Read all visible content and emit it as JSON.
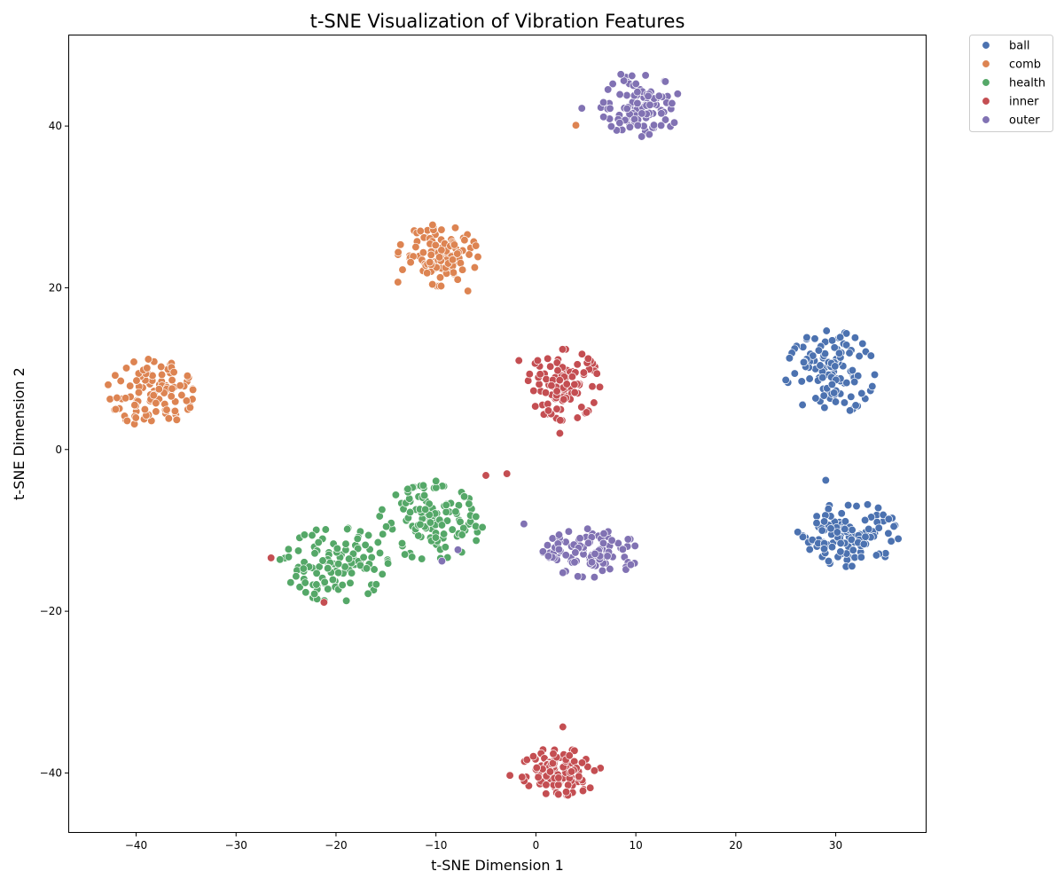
{
  "chart_data": {
    "type": "scatter",
    "title": "t-SNE Visualization of Vibration Features",
    "xlabel": "t-SNE Dimension 1",
    "ylabel": "t-SNE Dimension 2",
    "xlim": [
      -46.7,
      39.0
    ],
    "ylim": [
      -47.3,
      51.2
    ],
    "xticks": [
      -40,
      -30,
      -20,
      -10,
      0,
      10,
      20,
      30
    ],
    "yticks": [
      -40,
      -20,
      0,
      20,
      40
    ],
    "xtick_labels": [
      "−40",
      "−30",
      "−20",
      "−10",
      "0",
      "10",
      "20",
      "30"
    ],
    "ytick_labels": [
      "−40",
      "−20",
      "0",
      "20",
      "40"
    ],
    "grid": false,
    "legend_position": "outside-top-right",
    "series": [
      {
        "name": "ball",
        "color": "#4c72b0",
        "clusters": [
          {
            "center": [
              29.5,
              9.5
            ],
            "spread": [
              2.2,
              2.6
            ],
            "count": 110
          },
          {
            "center": [
              31.5,
              -10.5
            ],
            "spread": [
              2.4,
              2.0
            ],
            "count": 115
          }
        ],
        "points": [
          [
            29.0,
            -3.8
          ],
          [
            25.0,
            8.6
          ],
          [
            26.2,
            -10.2
          ],
          [
            35.3,
            -8.6
          ]
        ]
      },
      {
        "name": "comb",
        "color": "#dd8452",
        "clusters": [
          {
            "center": [
              -38.5,
              7.0
            ],
            "spread": [
              2.1,
              2.1
            ],
            "count": 110
          },
          {
            "center": [
              -9.8,
              24.0
            ],
            "spread": [
              2.0,
              1.9
            ],
            "count": 110
          }
        ],
        "points": [
          [
            4.0,
            40.1
          ],
          [
            -42.8,
            8.0
          ],
          [
            -34.6,
            5.2
          ],
          [
            -13.8,
            20.7
          ],
          [
            -6.8,
            19.6
          ]
        ]
      },
      {
        "name": "health",
        "color": "#55a868",
        "clusters": [
          {
            "center": [
              -20.0,
              -14.2
            ],
            "spread": [
              2.6,
              2.3
            ],
            "count": 115
          },
          {
            "center": [
              -10.5,
              -9.0
            ],
            "spread": [
              2.6,
              2.3
            ],
            "count": 120
          }
        ],
        "points": [
          [
            -25.6,
            -13.6
          ],
          [
            -6.0,
            -8.3
          ],
          [
            -10.0,
            -3.9
          ]
        ]
      },
      {
        "name": "inner",
        "color": "#c44e52",
        "clusters": [
          {
            "center": [
              2.8,
              8.0
            ],
            "spread": [
              1.8,
              2.2
            ],
            "count": 105
          },
          {
            "center": [
              2.5,
              -39.8
            ],
            "spread": [
              2.0,
              1.5
            ],
            "count": 100
          }
        ],
        "points": [
          [
            -26.5,
            -13.4
          ],
          [
            -21.2,
            -18.9
          ],
          [
            -5.0,
            -3.2
          ],
          [
            -2.9,
            -3.0
          ],
          [
            2.4,
            2.0
          ],
          [
            2.7,
            -34.3
          ],
          [
            -2.6,
            -40.3
          ],
          [
            -1.7,
            11.0
          ]
        ]
      },
      {
        "name": "outer",
        "color": "#8172b3",
        "clusters": [
          {
            "center": [
              10.5,
              42.5
            ],
            "spread": [
              2.0,
              1.9
            ],
            "count": 105
          },
          {
            "center": [
              5.5,
              -12.8
            ],
            "spread": [
              2.4,
              1.5
            ],
            "count": 110
          }
        ],
        "points": [
          [
            -9.4,
            -13.8
          ],
          [
            -7.8,
            -12.4
          ],
          [
            -1.2,
            -9.2
          ],
          [
            4.6,
            42.2
          ],
          [
            8.5,
            46.4
          ]
        ]
      }
    ]
  }
}
